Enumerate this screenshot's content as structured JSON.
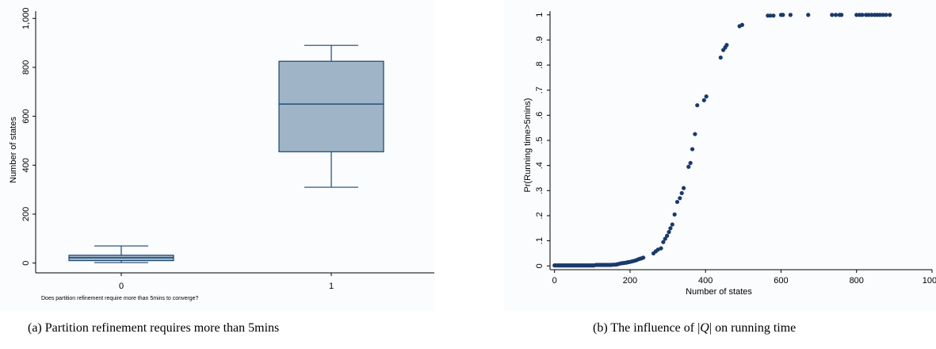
{
  "captions": {
    "a": "(a)  Partition refinement requires more than 5mins",
    "b_prefix": "(b)  The influence of |",
    "b_var": "Q",
    "b_suffix": "| on running time"
  },
  "chart_data": [
    {
      "type": "box",
      "title": "",
      "ylabel": "Number of states",
      "xlabel": "",
      "note": "Does partition refinement require more than 5mins to converge?",
      "ylim": [
        -40,
        1030
      ],
      "yticks": [
        0,
        200,
        400,
        600,
        800,
        1000
      ],
      "ytick_labels": [
        "0",
        "200",
        "400",
        "600",
        "800",
        "1,000"
      ],
      "categories": [
        "0",
        "1"
      ],
      "boxes": [
        {
          "category": "0",
          "whisker_low": 2,
          "q1": 10,
          "median": 22,
          "q3": 32,
          "whisker_high": 70
        },
        {
          "category": "1",
          "whisker_low": 310,
          "q1": 455,
          "median": 650,
          "q3": 825,
          "whisker_high": 890
        }
      ],
      "colors": {
        "box_fill": "#9fb4c7",
        "box_stroke": "#1a476f"
      },
      "grid": false
    },
    {
      "type": "scatter",
      "title": "",
      "ylabel": "Pr(Running time>5mins)",
      "xlabel": "Number of states",
      "xlim": [
        -12,
        1000
      ],
      "ylim": [
        -0.015,
        1.015
      ],
      "xticks": [
        0,
        200,
        400,
        600,
        800,
        1000
      ],
      "xtick_labels": [
        "0",
        "200",
        "400",
        "600",
        "800",
        "1000"
      ],
      "yticks": [
        0,
        0.1,
        0.2,
        0.3,
        0.4,
        0.5,
        0.6,
        0.7,
        0.8,
        0.9,
        1.0
      ],
      "ytick_labels": [
        "0",
        ".1",
        ".2",
        ".3",
        ".4",
        ".5",
        ".6",
        ".7",
        ".8",
        ".9",
        "1"
      ],
      "colors": {
        "marker": "#1a3a6b"
      },
      "grid": false,
      "x": [
        0,
        4,
        8,
        12,
        16,
        20,
        24,
        28,
        32,
        36,
        40,
        44,
        48,
        52,
        56,
        60,
        64,
        68,
        72,
        76,
        80,
        84,
        88,
        92,
        96,
        100,
        104,
        110,
        115,
        120,
        125,
        130,
        135,
        140,
        145,
        150,
        155,
        160,
        165,
        170,
        175,
        180,
        185,
        190,
        195,
        200,
        205,
        210,
        215,
        220,
        225,
        230,
        235,
        262,
        268,
        274,
        282,
        288,
        293,
        298,
        303,
        307,
        312,
        318,
        325,
        332,
        337,
        342,
        355,
        360,
        365,
        372,
        378,
        396,
        402,
        440,
        447,
        452,
        456,
        490,
        497,
        565,
        572,
        580,
        600,
        605,
        625,
        672,
        735,
        745,
        755,
        760,
        800,
        808,
        815,
        825,
        832,
        840,
        848,
        855,
        862,
        870,
        878,
        888
      ],
      "y": [
        0.002,
        0.002,
        0.002,
        0.002,
        0.002,
        0.002,
        0.002,
        0.002,
        0.002,
        0.002,
        0.002,
        0.002,
        0.002,
        0.002,
        0.002,
        0.002,
        0.002,
        0.002,
        0.002,
        0.002,
        0.002,
        0.002,
        0.002,
        0.002,
        0.002,
        0.002,
        0.002,
        0.004,
        0.004,
        0.004,
        0.004,
        0.004,
        0.004,
        0.004,
        0.004,
        0.004,
        0.005,
        0.005,
        0.006,
        0.008,
        0.01,
        0.011,
        0.012,
        0.013,
        0.015,
        0.016,
        0.018,
        0.02,
        0.022,
        0.025,
        0.028,
        0.03,
        0.033,
        0.05,
        0.058,
        0.065,
        0.07,
        0.095,
        0.108,
        0.12,
        0.135,
        0.15,
        0.165,
        0.205,
        0.255,
        0.27,
        0.29,
        0.31,
        0.395,
        0.41,
        0.465,
        0.525,
        0.64,
        0.66,
        0.675,
        0.83,
        0.86,
        0.87,
        0.88,
        0.955,
        0.96,
        0.997,
        0.997,
        0.997,
        1.0,
        1.0,
        1.0,
        1.0,
        1.0,
        1.0,
        1.0,
        1.0,
        1.0,
        1.0,
        1.0,
        1.0,
        1.0,
        1.0,
        1.0,
        1.0,
        1.0,
        1.0,
        1.0,
        1.0
      ]
    }
  ]
}
